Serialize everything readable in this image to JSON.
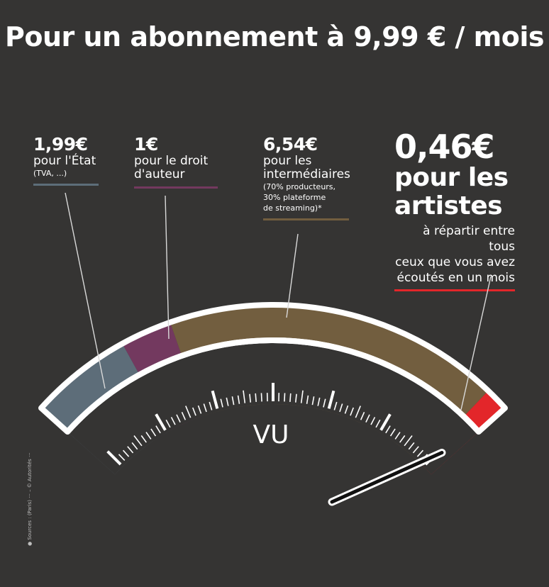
{
  "title": "Pour un abonnement à 9,99 € / mois",
  "center_label": "VU",
  "credit": "● Sources : (Paris) ··· – © Autorités ···",
  "chart_data": {
    "type": "gauge",
    "title": "Pour un abonnement à 9,99 € / mois",
    "unit": "€",
    "total": 9.99,
    "segments": [
      {
        "value": 1.99,
        "amount": "1,99€",
        "label": "pour l'État",
        "note": "(TVA, ...)",
        "color": "#5d6d79"
      },
      {
        "value": 1.0,
        "amount": "1€",
        "label": "pour le droit d'auteur",
        "note": "",
        "color": "#73395f"
      },
      {
        "value": 6.54,
        "amount": "6,54€",
        "label": "pour les intermédiaires",
        "note": "(70% producteurs, 30% plateforme de streaming)*",
        "color": "#725e3f"
      },
      {
        "value": 0.46,
        "amount": "0,46€",
        "label": "pour les artistes",
        "note": "à répartir entre tous ceux que vous avez écoutés en un mois",
        "color": "#e3262a"
      }
    ],
    "needle_value": 9.76
  },
  "labels": {
    "state": {
      "amount": "1,99€",
      "line1": "pour l'État",
      "note": "(TVA, ...)"
    },
    "author": {
      "amount": "1€",
      "line1": "pour le droit",
      "line2": "d'auteur"
    },
    "inter": {
      "amount": "6,54€",
      "line1": "pour les",
      "line2": "intermédiaires",
      "note1": "(70% producteurs,",
      "note2": "30% plateforme",
      "note3": "de streaming)*"
    },
    "artists": {
      "amount": "0,46€",
      "line1": "pour les",
      "line2": "artistes",
      "sub1": "à répartir entre tous",
      "sub2": "ceux que vous avez",
      "sub3": "écoutés en un mois"
    }
  }
}
